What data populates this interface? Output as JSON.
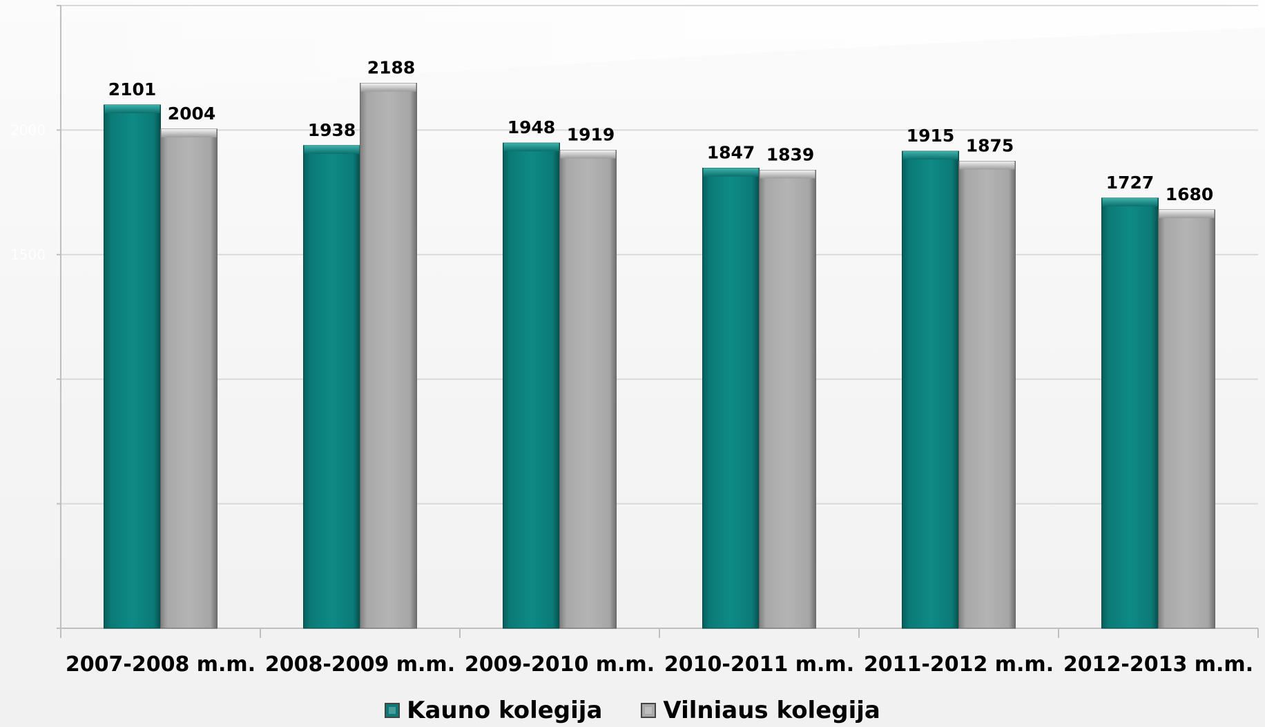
{
  "chart_data": {
    "type": "bar",
    "categories": [
      "2007-2008 m.m.",
      "2008-2009 m.m.",
      "2009-2010 m.m.",
      "2010-2011 m.m.",
      "2011-2012 m.m.",
      "2012-2013 m.m."
    ],
    "series": [
      {
        "name": "Kauno kolegija",
        "values": [
          2101,
          1938,
          1948,
          1847,
          1915,
          1727
        ],
        "color": "#0c7b77"
      },
      {
        "name": "Vilniaus kolegija",
        "values": [
          2004,
          2188,
          1919,
          1839,
          1875,
          1680
        ],
        "color": "#a9a9a9"
      }
    ],
    "ylim": [
      0,
      2500
    ],
    "yticks": [
      0,
      500,
      1000,
      1500,
      2000,
      2500
    ],
    "ytick_labels": [
      "",
      "",
      "",
      "1500",
      "2000",
      ""
    ],
    "grid": true,
    "legend_position": "bottom",
    "title": "",
    "xlabel": "",
    "ylabel": ""
  }
}
